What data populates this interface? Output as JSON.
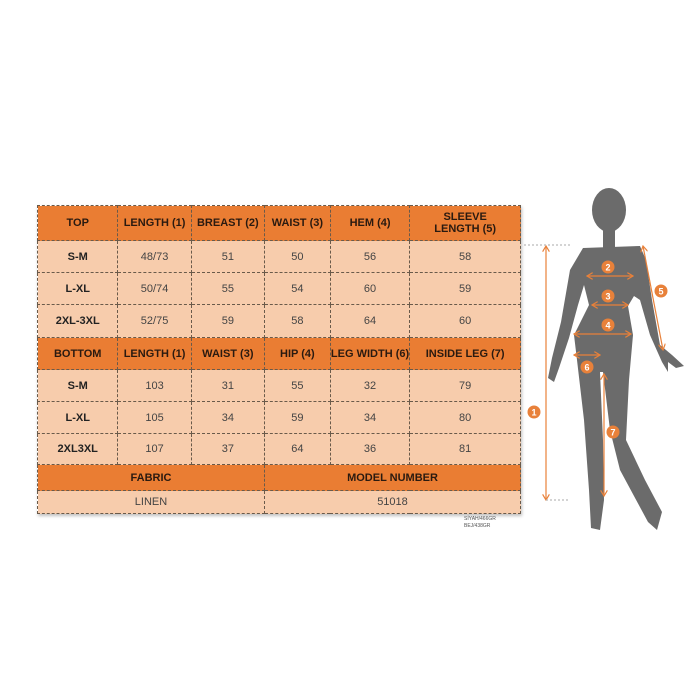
{
  "top_table": {
    "headers": [
      "TOP",
      "LENGTH (1)",
      "BREAST (2)",
      "WAIST (3)",
      "HEM (4)",
      "SLEEVE LENGTH (5)"
    ],
    "rows": [
      [
        "S-M",
        "48/73",
        "51",
        "50",
        "56",
        "58"
      ],
      [
        "L-XL",
        "50/74",
        "55",
        "54",
        "60",
        "59"
      ],
      [
        "2XL-3XL",
        "52/75",
        "59",
        "58",
        "64",
        "60"
      ]
    ]
  },
  "bottom_table": {
    "headers": [
      "BOTTOM",
      "LENGTH (1)",
      "WAIST (3)",
      "HIP (4)",
      "LEG WIDTH (6)",
      "INSIDE LEG (7)"
    ],
    "rows": [
      [
        "S-M",
        "103",
        "31",
        "55",
        "32",
        "79"
      ],
      [
        "L-XL",
        "105",
        "34",
        "59",
        "34",
        "80"
      ],
      [
        "2XL3XL",
        "107",
        "37",
        "64",
        "36",
        "81"
      ]
    ]
  },
  "footer": {
    "fabric_label": "FABRIC",
    "model_label": "MODEL NUMBER",
    "fabric": "LINEN",
    "model": "51018"
  },
  "weights": [
    "SİYAH/466GR",
    "BEJ/438GR"
  ],
  "figure": {
    "markers": [
      "1",
      "2",
      "3",
      "4",
      "5",
      "6",
      "7"
    ],
    "accent": "#e8813a",
    "silhouette": "#6b6b6b"
  }
}
